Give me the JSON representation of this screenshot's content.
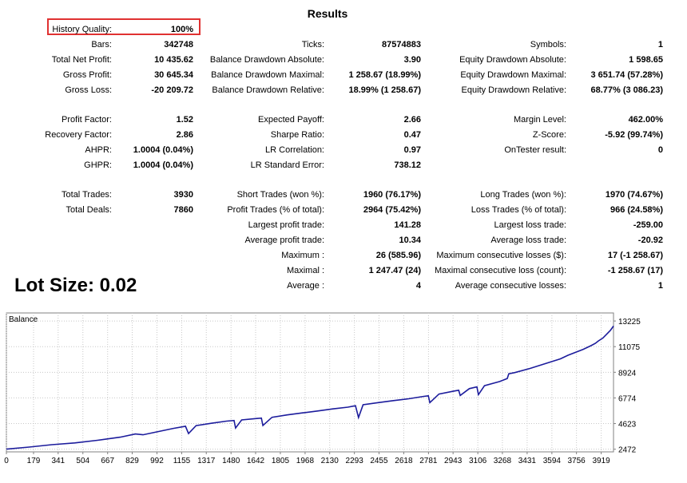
{
  "report": {
    "title": "Results",
    "lot_size": "Lot Size: 0.02",
    "rows": [
      {
        "cells": [
          [
            "History Quality:",
            "100%"
          ],
          [
            "",
            ""
          ],
          [
            "",
            ""
          ]
        ]
      },
      {
        "cells": [
          [
            "Bars:",
            "342748"
          ],
          [
            "Ticks:",
            "87574883"
          ],
          [
            "Symbols:",
            "1"
          ]
        ]
      },
      {
        "cells": [
          [
            "Total Net Profit:",
            "10 435.62"
          ],
          [
            "Balance Drawdown Absolute:",
            "3.90"
          ],
          [
            "Equity Drawdown Absolute:",
            "1 598.65"
          ]
        ]
      },
      {
        "cells": [
          [
            "Gross Profit:",
            "30 645.34"
          ],
          [
            "Balance Drawdown Maximal:",
            "1 258.67 (18.99%)"
          ],
          [
            "Equity Drawdown Maximal:",
            "3 651.74 (57.28%)"
          ]
        ]
      },
      {
        "cells": [
          [
            "Gross Loss:",
            "-20 209.72"
          ],
          [
            "Balance Drawdown Relative:",
            "18.99% (1 258.67)"
          ],
          [
            "Equity Drawdown Relative:",
            "68.77% (3 086.23)"
          ]
        ]
      },
      {
        "cells": [
          [
            "Profit Factor:",
            "1.52"
          ],
          [
            "Expected Payoff:",
            "2.66"
          ],
          [
            "Margin Level:",
            "462.00%"
          ]
        ]
      },
      {
        "cells": [
          [
            "Recovery Factor:",
            "2.86"
          ],
          [
            "Sharpe Ratio:",
            "0.47"
          ],
          [
            "Z-Score:",
            "-5.92 (99.74%)"
          ]
        ]
      },
      {
        "cells": [
          [
            "AHPR:",
            "1.0004 (0.04%)"
          ],
          [
            "LR Correlation:",
            "0.97"
          ],
          [
            "OnTester result:",
            "0"
          ]
        ]
      },
      {
        "cells": [
          [
            "GHPR:",
            "1.0004 (0.04%)"
          ],
          [
            "LR Standard Error:",
            "738.12"
          ],
          [
            "",
            ""
          ]
        ]
      },
      {
        "cells": [
          [
            "Total Trades:",
            "3930"
          ],
          [
            "Short Trades (won %):",
            "1960 (76.17%)"
          ],
          [
            "Long Trades (won %):",
            "1970 (74.67%)"
          ]
        ]
      },
      {
        "cells": [
          [
            "Total Deals:",
            "7860"
          ],
          [
            "Profit Trades (% of total):",
            "2964 (75.42%)"
          ],
          [
            "Loss Trades (% of total):",
            "966 (24.58%)"
          ]
        ]
      },
      {
        "cells": [
          [
            "",
            ""
          ],
          [
            "Largest profit trade:",
            "141.28"
          ],
          [
            "Largest loss trade:",
            "-259.00"
          ]
        ]
      },
      {
        "cells": [
          [
            "",
            ""
          ],
          [
            "Average profit trade:",
            "10.34"
          ],
          [
            "Average loss trade:",
            "-20.92"
          ]
        ]
      },
      {
        "cells": [
          [
            "",
            ""
          ],
          [
            "Maximum :",
            "26 (585.96)"
          ],
          [
            "Maximum consecutive losses ($):",
            "17 (-1 258.67)"
          ]
        ]
      },
      {
        "cells": [
          [
            "",
            ""
          ],
          [
            "Maximal :",
            "1 247.47 (24)"
          ],
          [
            "Maximal consecutive loss (count):",
            "-1 258.67 (17)"
          ]
        ]
      },
      {
        "cells": [
          [
            "",
            ""
          ],
          [
            "Average :",
            "4"
          ],
          [
            "Average consecutive losses:",
            "1"
          ]
        ]
      }
    ]
  },
  "chart_data": {
    "type": "line",
    "title": "Balance",
    "x_ticks": [
      0,
      179,
      341,
      504,
      667,
      829,
      992,
      1155,
      1317,
      1480,
      1642,
      1805,
      1968,
      2130,
      2293,
      2455,
      2618,
      2781,
      2943,
      3106,
      3268,
      3431,
      3594,
      3756,
      3919
    ],
    "y_ticks": [
      2472,
      4623,
      6774,
      8924,
      11075,
      13225
    ],
    "xlim": [
      0,
      4000
    ],
    "ylim": [
      2250,
      13900
    ],
    "grid": true,
    "line_color": "#1c1c9c",
    "series": [
      {
        "x": [
          0,
          150,
          300,
          450,
          600,
          750,
          850,
          900,
          1000,
          1100,
          1180,
          1200,
          1250,
          1350,
          1450,
          1500,
          1510,
          1550,
          1650,
          1680,
          1690,
          1750,
          1850,
          1950,
          2050,
          2150,
          2250,
          2300,
          2320,
          2350,
          2450,
          2550,
          2650,
          2750,
          2780,
          2790,
          2850,
          2950,
          2980,
          2990,
          3050,
          3100,
          3110,
          3150,
          3250,
          3300,
          3310,
          3350,
          3450,
          3500,
          3550,
          3600,
          3650,
          3700,
          3800,
          3850,
          3880,
          3900,
          3930,
          3950,
          3980,
          4000
        ],
        "y": [
          2480,
          2650,
          2850,
          3000,
          3220,
          3480,
          3750,
          3680,
          3950,
          4220,
          4400,
          3780,
          4450,
          4650,
          4830,
          4880,
          4250,
          4930,
          5050,
          5080,
          4460,
          5150,
          5350,
          5520,
          5680,
          5850,
          6000,
          6120,
          5130,
          6200,
          6380,
          6550,
          6700,
          6900,
          6950,
          6380,
          7100,
          7350,
          7420,
          6980,
          7550,
          7700,
          7050,
          7800,
          8150,
          8400,
          8800,
          8900,
          9250,
          9450,
          9650,
          9850,
          10050,
          10350,
          10850,
          11150,
          11350,
          11550,
          11800,
          12050,
          12450,
          12800
        ]
      }
    ]
  }
}
